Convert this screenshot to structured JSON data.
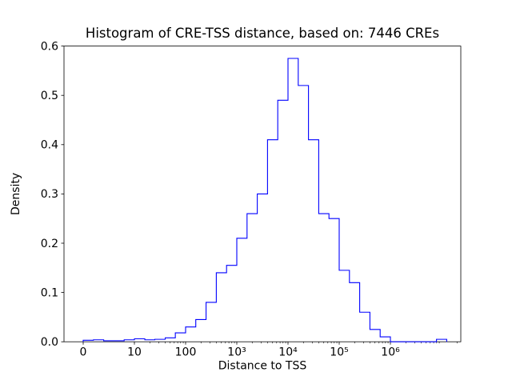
{
  "chart_data": {
    "type": "histogram-step",
    "title": "Histogram of CRE-TSS distance, based on: 7446 CREs",
    "xlabel": "Distance to TSS",
    "ylabel": "Density",
    "x_scale": "symlog",
    "linthresh": 10,
    "color": "#0000ff",
    "background": "#ffffff",
    "grid": false,
    "legend": "none",
    "ylim": [
      0,
      0.6
    ],
    "ulim": [
      -0.375,
      7.375
    ],
    "yticks": [
      0.0,
      0.1,
      0.2,
      0.3,
      0.4,
      0.5,
      0.6
    ],
    "xticks": [
      {
        "value": 0,
        "label": "0"
      },
      {
        "value": 10,
        "label": "10"
      },
      {
        "value": 100,
        "label": "100"
      },
      {
        "value": 1000,
        "label": "10³"
      },
      {
        "value": 10000,
        "label": "10⁴"
      },
      {
        "value": 100000,
        "label": "10⁵"
      },
      {
        "value": 1000000,
        "label": "10⁶"
      }
    ],
    "bin_edges": [
      0,
      2,
      4,
      6,
      8,
      10,
      16,
      25,
      40,
      63,
      100,
      158,
      251,
      398,
      631,
      1000,
      1585,
      2512,
      3981,
      6310,
      10000,
      15849,
      25119,
      39811,
      63096,
      100000,
      158489,
      251189,
      398107,
      630957,
      1000000,
      1584893,
      2511886,
      3981072,
      7943282,
      12589254
    ],
    "densities": [
      0.003,
      0.004,
      0.002,
      0.002,
      0.004,
      0.006,
      0.004,
      0.005,
      0.008,
      0.018,
      0.03,
      0.045,
      0.08,
      0.14,
      0.155,
      0.21,
      0.26,
      0.3,
      0.41,
      0.49,
      0.575,
      0.52,
      0.41,
      0.26,
      0.25,
      0.145,
      0.12,
      0.06,
      0.025,
      0.01,
      0,
      0,
      0,
      0,
      0.005
    ]
  }
}
